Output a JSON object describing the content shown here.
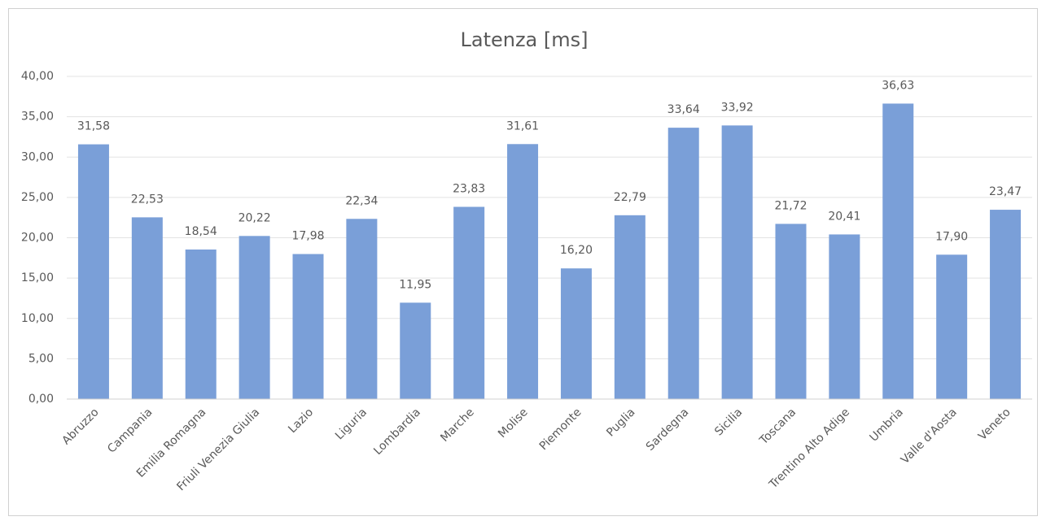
{
  "chart_data": {
    "type": "bar",
    "title": "Latenza [ms]",
    "categories": [
      "Abruzzo",
      "Campania",
      "Emilia Romagna",
      "Friuli Venezia Giulia",
      "Lazio",
      "Liguria",
      "Lombardia",
      "Marche",
      "Molise",
      "Piemonte",
      "Puglia",
      "Sardegna",
      "Sicilia",
      "Toscana",
      "Trentino Alto Adige",
      "Umbria",
      "Valle d'Aosta",
      "Veneto"
    ],
    "values": [
      31.58,
      22.53,
      18.54,
      20.22,
      17.98,
      22.34,
      11.95,
      23.83,
      31.61,
      16.2,
      22.79,
      33.64,
      33.92,
      21.72,
      20.41,
      36.63,
      17.9,
      23.47
    ],
    "value_labels": [
      "31,58",
      "22,53",
      "18,54",
      "20,22",
      "17,98",
      "22,34",
      "11,95",
      "23,83",
      "31,61",
      "16,20",
      "22,79",
      "33,64",
      "33,92",
      "21,72",
      "20,41",
      "36,63",
      "17,90",
      "23,47"
    ],
    "color": "#7a9fd8",
    "ylim": [
      0,
      40
    ],
    "yticks": [
      {
        "value": 0,
        "label": "0,00"
      },
      {
        "value": 5,
        "label": "5,00"
      },
      {
        "value": 10,
        "label": "10,00"
      },
      {
        "value": 15,
        "label": "15,00"
      },
      {
        "value": 20,
        "label": "20,00"
      },
      {
        "value": 25,
        "label": "25,00"
      },
      {
        "value": 30,
        "label": "30,00"
      },
      {
        "value": 35,
        "label": "35,00"
      },
      {
        "value": 40,
        "label": "40,00"
      }
    ],
    "grid": true
  }
}
